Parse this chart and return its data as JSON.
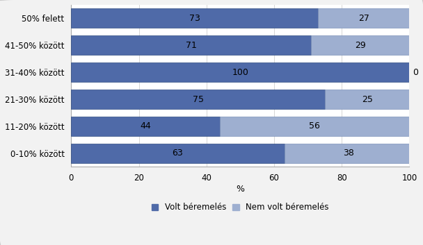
{
  "categories": [
    "0-10% között",
    "11-20% között",
    "21-30% között",
    "31-40% között",
    "41-50% között",
    "50% felett"
  ],
  "volt_beremelés": [
    63,
    44,
    75,
    100,
    71,
    73
  ],
  "nem_volt_beremelés": [
    38,
    56,
    25,
    0,
    29,
    27
  ],
  "color_volt": "#4F6AA8",
  "color_nem_volt": "#9EAFD0",
  "color_volt_edge": "#2E4A80",
  "color_nem_volt_edge": "#7A90B8",
  "xlabel": "%",
  "legend_volt": "Volt béremelés",
  "legend_nem_volt": "Nem volt béremelés",
  "xlim": [
    0,
    100
  ],
  "xticks": [
    0,
    20,
    40,
    60,
    80,
    100
  ],
  "bar_height": 0.72,
  "plot_bg_color": "#FFFFFF",
  "figure_bg_color": "#F2F2F2",
  "border_color": "#C8C8C8",
  "label_fontsize": 9,
  "tick_fontsize": 8.5,
  "xlabel_fontsize": 9,
  "legend_fontsize": 8.5
}
